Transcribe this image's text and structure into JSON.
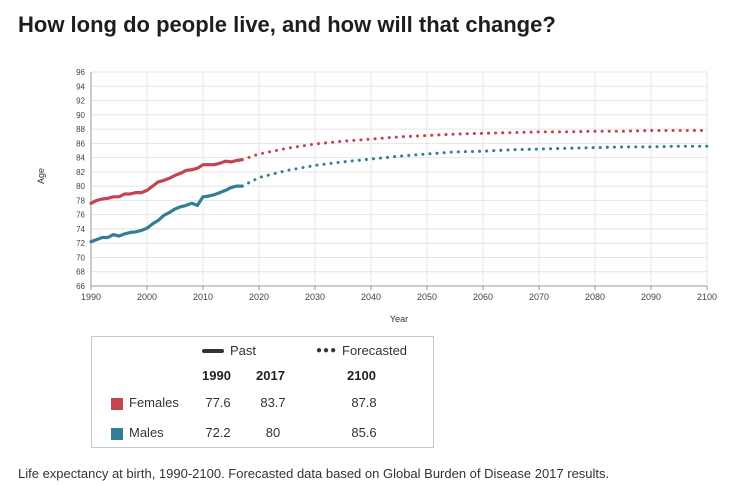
{
  "title": "How long do people live, and how will that change?",
  "caption": "Life expectancy at birth, 1990-2100. Forecasted data based on Global Burden of Disease 2017 results.",
  "colors": {
    "females": "#c4444f",
    "males": "#347d96"
  },
  "chart_data": {
    "type": "line",
    "xlabel": "Year",
    "ylabel": "Age",
    "xlim": [
      1990,
      2100
    ],
    "ylim": [
      66,
      96
    ],
    "xticks": [
      1990,
      2000,
      2010,
      2020,
      2030,
      2040,
      2050,
      2060,
      2070,
      2080,
      2090,
      2100
    ],
    "yticks": [
      66,
      68,
      70,
      72,
      74,
      76,
      78,
      80,
      82,
      84,
      86,
      88,
      90,
      92,
      94,
      96
    ],
    "grid": true,
    "series": [
      {
        "name": "Females",
        "key": "females",
        "past": {
          "x": [
            1990,
            1991,
            1992,
            1993,
            1994,
            1995,
            1996,
            1997,
            1998,
            1999,
            2000,
            2001,
            2002,
            2003,
            2004,
            2005,
            2006,
            2007,
            2008,
            2009,
            2010,
            2011,
            2012,
            2013,
            2014,
            2015,
            2016,
            2017
          ],
          "y": [
            77.6,
            78.0,
            78.2,
            78.3,
            78.5,
            78.5,
            78.9,
            78.9,
            79.1,
            79.1,
            79.4,
            80.0,
            80.6,
            80.8,
            81.1,
            81.5,
            81.8,
            82.2,
            82.3,
            82.5,
            83.0,
            83.0,
            83.0,
            83.2,
            83.5,
            83.4,
            83.6,
            83.7
          ]
        },
        "forecast": {
          "x": [
            2017,
            2020,
            2025,
            2030,
            2035,
            2040,
            2045,
            2050,
            2055,
            2060,
            2065,
            2070,
            2075,
            2080,
            2085,
            2090,
            2095,
            2100
          ],
          "y": [
            83.7,
            84.5,
            85.3,
            85.9,
            86.3,
            86.6,
            86.9,
            87.1,
            87.3,
            87.4,
            87.5,
            87.6,
            87.6,
            87.7,
            87.7,
            87.8,
            87.8,
            87.8
          ]
        }
      },
      {
        "name": "Males",
        "key": "males",
        "past": {
          "x": [
            1990,
            1991,
            1992,
            1993,
            1994,
            1995,
            1996,
            1997,
            1998,
            1999,
            2000,
            2001,
            2002,
            2003,
            2004,
            2005,
            2006,
            2007,
            2008,
            2009,
            2010,
            2011,
            2012,
            2013,
            2014,
            2015,
            2016,
            2017
          ],
          "y": [
            72.2,
            72.5,
            72.8,
            72.8,
            73.2,
            73.0,
            73.3,
            73.5,
            73.6,
            73.8,
            74.1,
            74.7,
            75.2,
            75.9,
            76.3,
            76.8,
            77.1,
            77.3,
            77.6,
            77.3,
            78.5,
            78.6,
            78.8,
            79.1,
            79.4,
            79.8,
            80.0,
            80.0
          ]
        },
        "forecast": {
          "x": [
            2017,
            2020,
            2025,
            2030,
            2035,
            2040,
            2045,
            2050,
            2055,
            2060,
            2065,
            2070,
            2075,
            2080,
            2085,
            2090,
            2095,
            2100
          ],
          "y": [
            80.0,
            81.2,
            82.2,
            82.9,
            83.4,
            83.8,
            84.2,
            84.5,
            84.8,
            84.9,
            85.1,
            85.2,
            85.3,
            85.4,
            85.5,
            85.5,
            85.6,
            85.6
          ]
        }
      }
    ]
  },
  "legend": {
    "past_label": "Past",
    "forecast_label": "Forecasted",
    "col_1990": "1990",
    "col_2017": "2017",
    "col_2100": "2100",
    "rows": [
      {
        "name": "Females",
        "v1990": "77.6",
        "v2017": "83.7",
        "v2100": "87.8"
      },
      {
        "name": "Males",
        "v1990": "72.2",
        "v2017": "80",
        "v2100": "85.6"
      }
    ]
  }
}
